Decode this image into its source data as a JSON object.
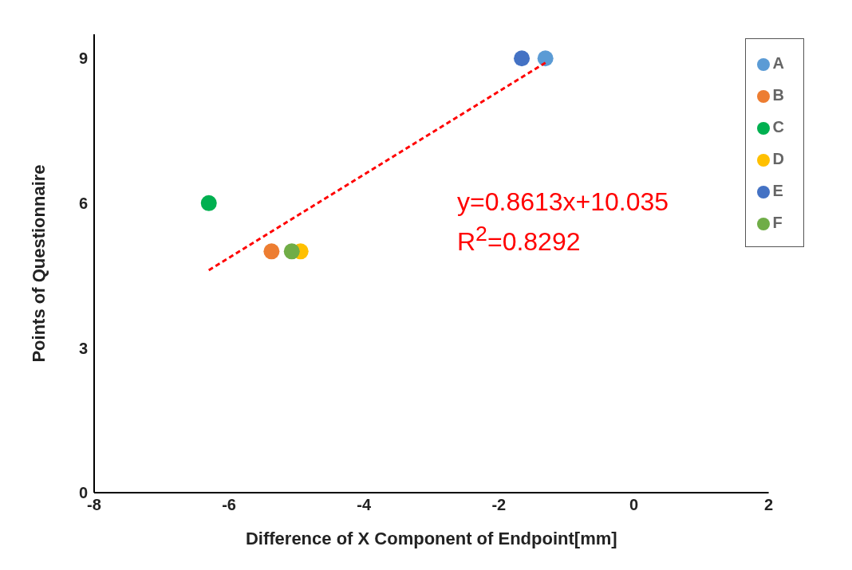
{
  "chart_data": {
    "type": "scatter",
    "xlabel": "Difference of X Component of Endpoint[mm]",
    "ylabel": "Points of Questionnaire",
    "xlim": [
      -8,
      2
    ],
    "xticks": [
      -8,
      -6,
      -4,
      -2,
      0,
      2
    ],
    "ylim": [
      0,
      9.5
    ],
    "yticks": [
      0,
      3,
      6,
      9
    ],
    "legend": "top right",
    "marker": "circle",
    "series": [
      {
        "name": "A",
        "color": "#5b9bd5",
        "x": [
          -1.31
        ],
        "values": [
          9
        ]
      },
      {
        "name": "B",
        "color": "#ed7d31",
        "x": [
          -5.37
        ],
        "values": [
          5
        ]
      },
      {
        "name": "C",
        "color": "#00b050",
        "x": [
          -6.3
        ],
        "values": [
          6
        ]
      },
      {
        "name": "D",
        "color": "#ffc000",
        "x": [
          -4.94
        ],
        "values": [
          5
        ]
      },
      {
        "name": "E",
        "color": "#4472c4",
        "x": [
          -1.66
        ],
        "values": [
          9
        ]
      },
      {
        "name": "F",
        "color": "#70ad47",
        "x": [
          -5.07
        ],
        "values": [
          5
        ]
      },
      {
        "type": "line",
        "color": "#ff0000",
        "line_style": "dashed",
        "marker": "none",
        "x": [
          -6.3,
          -1.31
        ],
        "values": [
          4.61,
          8.91
        ]
      }
    ],
    "annotations": [
      "y=0.8613x+10.035",
      "R$^{2}$=0.8292"
    ]
  }
}
